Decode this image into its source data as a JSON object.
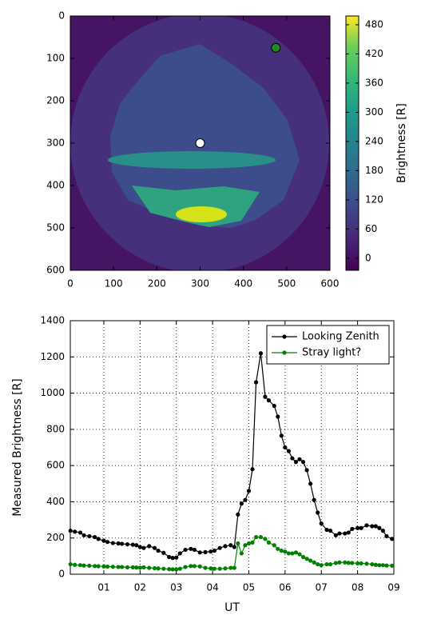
{
  "chart_data": [
    {
      "type": "image",
      "xlim": [
        0,
        600
      ],
      "ylim": [
        600,
        0
      ],
      "xticks": [
        0,
        100,
        200,
        300,
        400,
        500,
        600
      ],
      "yticks": [
        0,
        100,
        200,
        300,
        400,
        500,
        600
      ],
      "markers": {
        "x": [
          300,
          475
        ],
        "y": [
          300,
          75
        ],
        "colors": [
          "#ffffff",
          "#228b22"
        ]
      },
      "colorbar": {
        "label": "Brightness [R]",
        "lim": [
          -25,
          498
        ],
        "ticks": [
          0,
          60,
          120,
          180,
          240,
          300,
          360,
          420,
          480
        ]
      }
    },
    {
      "type": "line",
      "xlabel": "UT",
      "ylabel": "Measured Brightness [R]",
      "xlim": [
        0.075,
        9
      ],
      "ylim": [
        0,
        1400
      ],
      "xticks": [
        {
          "value": 1,
          "label": "01"
        },
        {
          "value": 2,
          "label": "02"
        },
        {
          "value": 3,
          "label": "03"
        },
        {
          "value": 4,
          "label": "04"
        },
        {
          "value": 5,
          "label": "05"
        },
        {
          "value": 6,
          "label": "06"
        },
        {
          "value": 7,
          "label": "07"
        },
        {
          "value": 8,
          "label": "08"
        },
        {
          "value": 9,
          "label": "09"
        }
      ],
      "yticks": [
        0,
        200,
        400,
        600,
        800,
        1000,
        1200,
        1400
      ],
      "grid": true,
      "legend": "upper right",
      "x": [
        0.08,
        0.2,
        0.35,
        0.45,
        0.6,
        0.75,
        0.85,
        1.0,
        1.1,
        1.25,
        1.4,
        1.5,
        1.65,
        1.8,
        1.9,
        2.0,
        2.1,
        2.25,
        2.4,
        2.5,
        2.65,
        2.8,
        2.9,
        3.0,
        3.1,
        3.25,
        3.4,
        3.5,
        3.65,
        3.8,
        3.95,
        4.05,
        4.2,
        4.35,
        4.5,
        4.6,
        4.7,
        4.8,
        4.9,
        5.0,
        5.1,
        5.2,
        5.33,
        5.45,
        5.55,
        5.7,
        5.8,
        5.9,
        6.0,
        6.1,
        6.2,
        6.3,
        6.4,
        6.5,
        6.6,
        6.7,
        6.8,
        6.9,
        7.0,
        7.15,
        7.25,
        7.4,
        7.5,
        7.65,
        7.75,
        7.85,
        8.0,
        8.1,
        8.25,
        8.4,
        8.5,
        8.6,
        8.7,
        8.8,
        8.95
      ],
      "series": [
        {
          "name": "Looking Zenith",
          "color": "#000000",
          "values": [
            240,
            235,
            230,
            215,
            210,
            205,
            195,
            185,
            178,
            172,
            170,
            168,
            165,
            163,
            160,
            150,
            145,
            155,
            145,
            130,
            118,
            95,
            90,
            92,
            115,
            135,
            140,
            135,
            120,
            122,
            125,
            130,
            145,
            155,
            160,
            150,
            330,
            390,
            410,
            460,
            580,
            1060,
            1220,
            980,
            960,
            930,
            870,
            765,
            700,
            680,
            640,
            620,
            635,
            620,
            575,
            500,
            410,
            340,
            280,
            245,
            240,
            215,
            225,
            225,
            230,
            250,
            255,
            255,
            270,
            265,
            265,
            255,
            240,
            210,
            195
          ]
        },
        {
          "name": "Stray light?",
          "color": "#008000",
          "values": [
            55,
            52,
            50,
            48,
            47,
            45,
            44,
            43,
            42,
            41,
            40,
            40,
            38,
            38,
            37,
            36,
            38,
            35,
            33,
            32,
            30,
            28,
            27,
            27,
            30,
            40,
            45,
            45,
            43,
            35,
            32,
            30,
            30,
            32,
            35,
            35,
            170,
            115,
            160,
            170,
            175,
            205,
            205,
            195,
            175,
            160,
            140,
            130,
            125,
            115,
            115,
            120,
            110,
            95,
            85,
            75,
            65,
            55,
            50,
            55,
            55,
            62,
            65,
            65,
            63,
            62,
            60,
            60,
            58,
            55,
            52,
            50,
            50,
            48,
            47
          ]
        }
      ]
    }
  ]
}
